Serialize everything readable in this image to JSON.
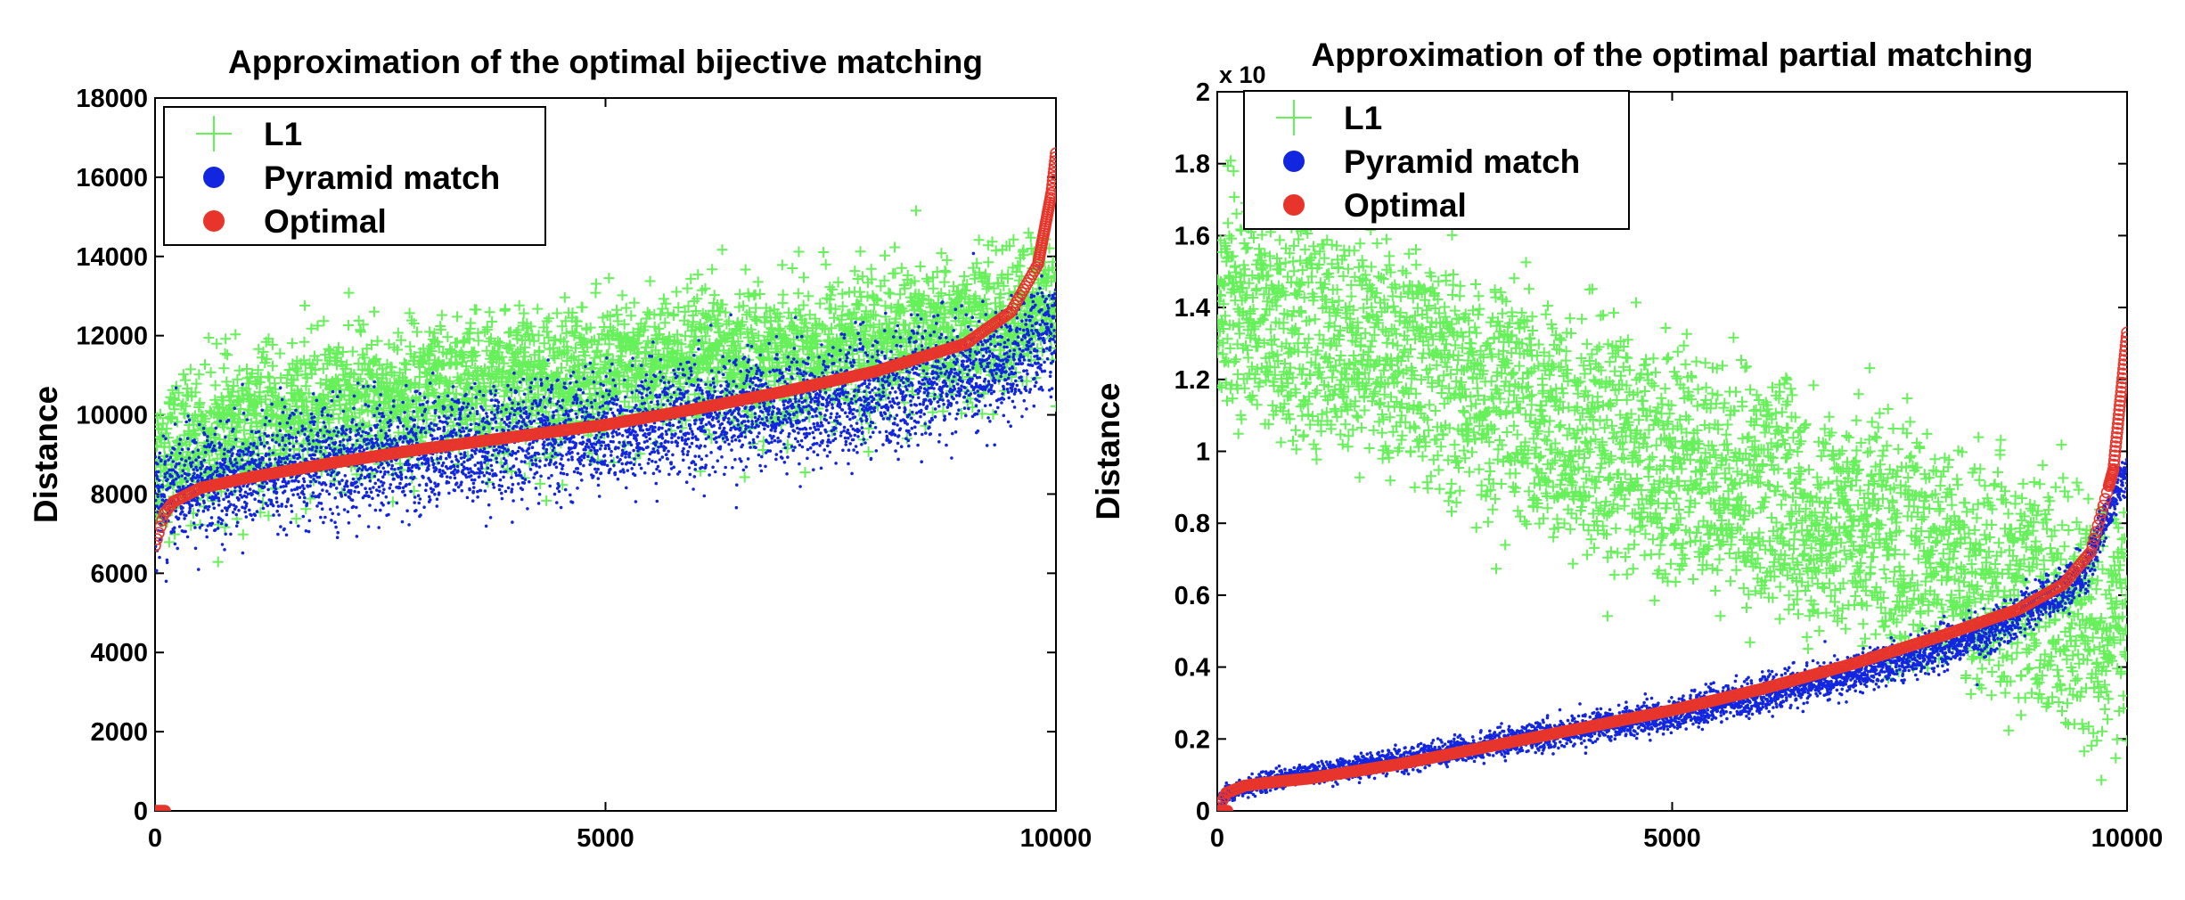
{
  "colors": {
    "l1": "#66f05a",
    "pyramid": "#1226e0",
    "optimal": "#e8352b"
  },
  "chart_data": [
    {
      "type": "scatter",
      "title": "Approximation of the optimal bijective matching",
      "xlabel": "",
      "ylabel": "Distance",
      "xlim": [
        0,
        10000
      ],
      "ylim": [
        0,
        18000
      ],
      "xticks": [
        "0",
        "5000",
        "10000"
      ],
      "yticks": [
        "0",
        "2000",
        "4000",
        "6000",
        "8000",
        "10000",
        "12000",
        "14000",
        "16000",
        "18000"
      ],
      "y_multiplier": "",
      "legend_position": "top-left",
      "grid": false,
      "num_points_per_series": 10000,
      "series": [
        {
          "name": "L1",
          "marker": "plus",
          "color": "#66f05a",
          "trend_x": [
            0,
            500,
            2000,
            5000,
            8000,
            9500,
            10000
          ],
          "trend_y_mean": [
            8800,
            9300,
            10200,
            11000,
            11800,
            12300,
            13000
          ],
          "spread_std": 900
        },
        {
          "name": "Pyramid match",
          "marker": "dot",
          "color": "#1226e0",
          "trend_x": [
            0,
            500,
            2000,
            5000,
            8000,
            9500,
            10000
          ],
          "trend_y_mean": [
            7800,
            8300,
            8800,
            9600,
            10500,
            11300,
            12300
          ],
          "spread_std": 700
        },
        {
          "name": "Optimal",
          "marker": "circle",
          "color": "#e8352b",
          "x": [
            0,
            100,
            200,
            500,
            1000,
            2000,
            3000,
            4000,
            5000,
            6000,
            7000,
            8000,
            9000,
            9500,
            9800,
            9950,
            10000
          ],
          "y": [
            6700,
            7500,
            7800,
            8150,
            8400,
            8800,
            9150,
            9450,
            9750,
            10150,
            10600,
            11100,
            11800,
            12600,
            13800,
            15600,
            16600
          ]
        }
      ]
    },
    {
      "type": "scatter",
      "title": "Approximation of the optimal partial matching",
      "xlabel": "",
      "ylabel": "Distance",
      "xlim": [
        0,
        10000
      ],
      "ylim": [
        0,
        2
      ],
      "xticks": [
        "0",
        "5000",
        "10000"
      ],
      "yticks": [
        "0",
        "0.2",
        "0.4",
        "0.6",
        "0.8",
        "1",
        "1.2",
        "1.4",
        "1.6",
        "1.8",
        "2"
      ],
      "y_multiplier": "x 10",
      "legend_position": "top-left",
      "grid": false,
      "num_points_per_series": 10000,
      "series": [
        {
          "name": "L1",
          "marker": "plus",
          "color": "#66f05a",
          "trend_x": [
            0,
            1000,
            3000,
            5000,
            7000,
            8500,
            10000
          ],
          "trend_y_mean": [
            1.45,
            1.35,
            1.15,
            0.95,
            0.8,
            0.65,
            0.5
          ],
          "spread_std": 0.25
        },
        {
          "name": "Pyramid match",
          "marker": "dot",
          "color": "#1226e0",
          "trend_x": [
            0,
            100,
            500,
            2000,
            5000,
            7000,
            8500,
            9500,
            10000
          ],
          "trend_y_mean": [
            0.0,
            0.05,
            0.08,
            0.14,
            0.27,
            0.38,
            0.5,
            0.65,
            0.95
          ],
          "spread_std": 0.02
        },
        {
          "name": "Optimal",
          "marker": "circle",
          "color": "#e8352b",
          "x": [
            0,
            100,
            300,
            600,
            1000,
            2000,
            3000,
            4000,
            5000,
            6000,
            7000,
            8000,
            8800,
            9300,
            9600,
            9850,
            10000
          ],
          "y": [
            0.0,
            0.05,
            0.07,
            0.08,
            0.09,
            0.13,
            0.18,
            0.23,
            0.28,
            0.34,
            0.41,
            0.49,
            0.56,
            0.63,
            0.72,
            0.95,
            1.33
          ]
        }
      ]
    }
  ]
}
